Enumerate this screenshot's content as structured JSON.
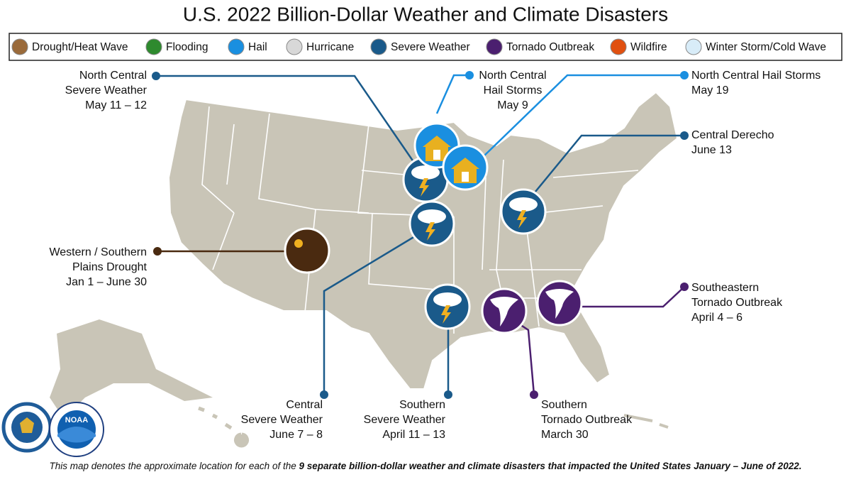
{
  "title": "U.S. 2022 Billion-Dollar Weather and Climate Disasters",
  "legend": [
    "Drought/Heat Wave",
    "Flooding",
    "Hail",
    "Hurricane",
    "Severe Weather",
    "Tornado Outbreak",
    "Wildfire",
    "Winter Storm/Cold Wave"
  ],
  "events": [
    {
      "lines": [
        "North Central",
        "Severe Weather",
        "May 11 – 12"
      ]
    },
    {
      "lines": [
        "North Central",
        "Hail Storms",
        "May 9"
      ]
    },
    {
      "lines": [
        "North Central Hail Storms",
        "May 19"
      ]
    },
    {
      "lines": [
        "Central Derecho",
        "June 13"
      ]
    },
    {
      "lines": [
        "Western / Southern",
        "Plains Drought",
        "Jan 1 – June 30"
      ]
    },
    {
      "lines": [
        "Southeastern",
        "Tornado Outbreak",
        "April 4 – 6"
      ]
    },
    {
      "lines": [
        "Central",
        "Severe Weather",
        "June 7 – 8"
      ]
    },
    {
      "lines": [
        "Southern",
        "Severe Weather",
        "April 11 – 13"
      ]
    },
    {
      "lines": [
        "Southern",
        "Tornado Outbreak",
        "March 30"
      ]
    }
  ],
  "logos": {
    "noaa": "NOAA"
  },
  "footnote": {
    "plain": "This map denotes the approximate location for each of the ",
    "bold": "9 separate billion-dollar weather and climate disasters that impacted the United States January – June of 2022."
  }
}
